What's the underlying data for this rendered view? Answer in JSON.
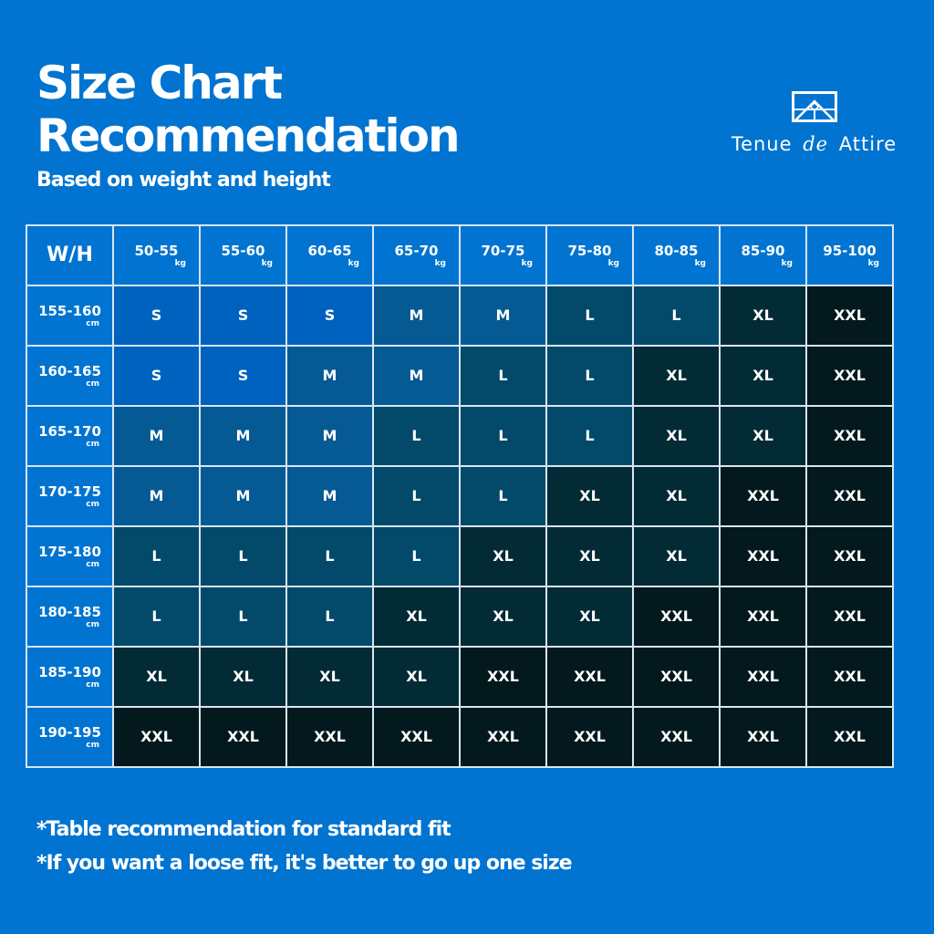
{
  "title_line1": "Size Chart",
  "title_line2": "Recommendation",
  "subtitle": "Based on weight and height",
  "logo": {
    "text_left": "Tenue",
    "text_script": "de",
    "text_right": "Attire"
  },
  "table": {
    "corner": "W/H",
    "weight_unit": "kg",
    "height_unit": "cm",
    "weights": [
      "50-55",
      "55-60",
      "60-65",
      "65-70",
      "70-75",
      "75-80",
      "80-85",
      "85-90",
      "95-100"
    ],
    "rows": [
      {
        "height": "155-160",
        "sizes": [
          "S",
          "S",
          "S",
          "M",
          "M",
          "L",
          "L",
          "XL",
          "XXL"
        ]
      },
      {
        "height": "160-165",
        "sizes": [
          "S",
          "S",
          "M",
          "M",
          "L",
          "L",
          "XL",
          "XL",
          "XXL"
        ]
      },
      {
        "height": "165-170",
        "sizes": [
          "M",
          "M",
          "M",
          "L",
          "L",
          "L",
          "XL",
          "XL",
          "XXL"
        ]
      },
      {
        "height": "170-175",
        "sizes": [
          "M",
          "M",
          "M",
          "L",
          "L",
          "XL",
          "XL",
          "XXL",
          "XXL"
        ]
      },
      {
        "height": "175-180",
        "sizes": [
          "L",
          "L",
          "L",
          "L",
          "XL",
          "XL",
          "XL",
          "XXL",
          "XXL"
        ]
      },
      {
        "height": "180-185",
        "sizes": [
          "L",
          "L",
          "L",
          "XL",
          "XL",
          "XL",
          "XXL",
          "XXL",
          "XXL"
        ]
      },
      {
        "height": "185-190",
        "sizes": [
          "XL",
          "XL",
          "XL",
          "XL",
          "XXL",
          "XXL",
          "XXL",
          "XXL",
          "XXL"
        ]
      },
      {
        "height": "190-195",
        "sizes": [
          "XXL",
          "XXL",
          "XXL",
          "XXL",
          "XXL",
          "XXL",
          "XXL",
          "XXL",
          "XXL"
        ]
      }
    ],
    "size_colors": {
      "S": "#0062bf",
      "M": "#065a94",
      "L": "#034a6a",
      "XL": "#032b36",
      "XXL": "#03191d"
    }
  },
  "notes": [
    "*Table recommendation for standard fit",
    "*If you want a loose fit, it's better to go up one size"
  ],
  "colors": {
    "background": "#0074d0"
  }
}
